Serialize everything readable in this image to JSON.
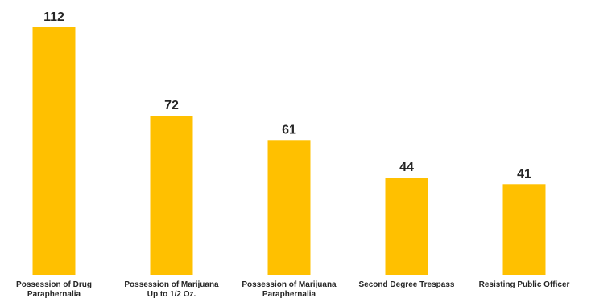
{
  "chart_data": {
    "type": "bar",
    "title": "",
    "xlabel": "",
    "ylabel": "",
    "categories": [
      [
        "Possession of Drug",
        "Paraphernalia"
      ],
      [
        "Possession of Marijuana",
        "Up to 1/2 Oz."
      ],
      [
        "Possession of Marijuana",
        "Paraphernalia"
      ],
      [
        "Second Degree Trespass"
      ],
      [
        "Resisting Public Officer"
      ]
    ],
    "values": [
      112,
      72,
      61,
      44,
      41
    ],
    "data_labels": [
      "112",
      "72",
      "61",
      "44",
      "41"
    ],
    "ylim": [
      0,
      112
    ],
    "grid": false,
    "legend": "none",
    "bar_color": "#FFC000"
  }
}
